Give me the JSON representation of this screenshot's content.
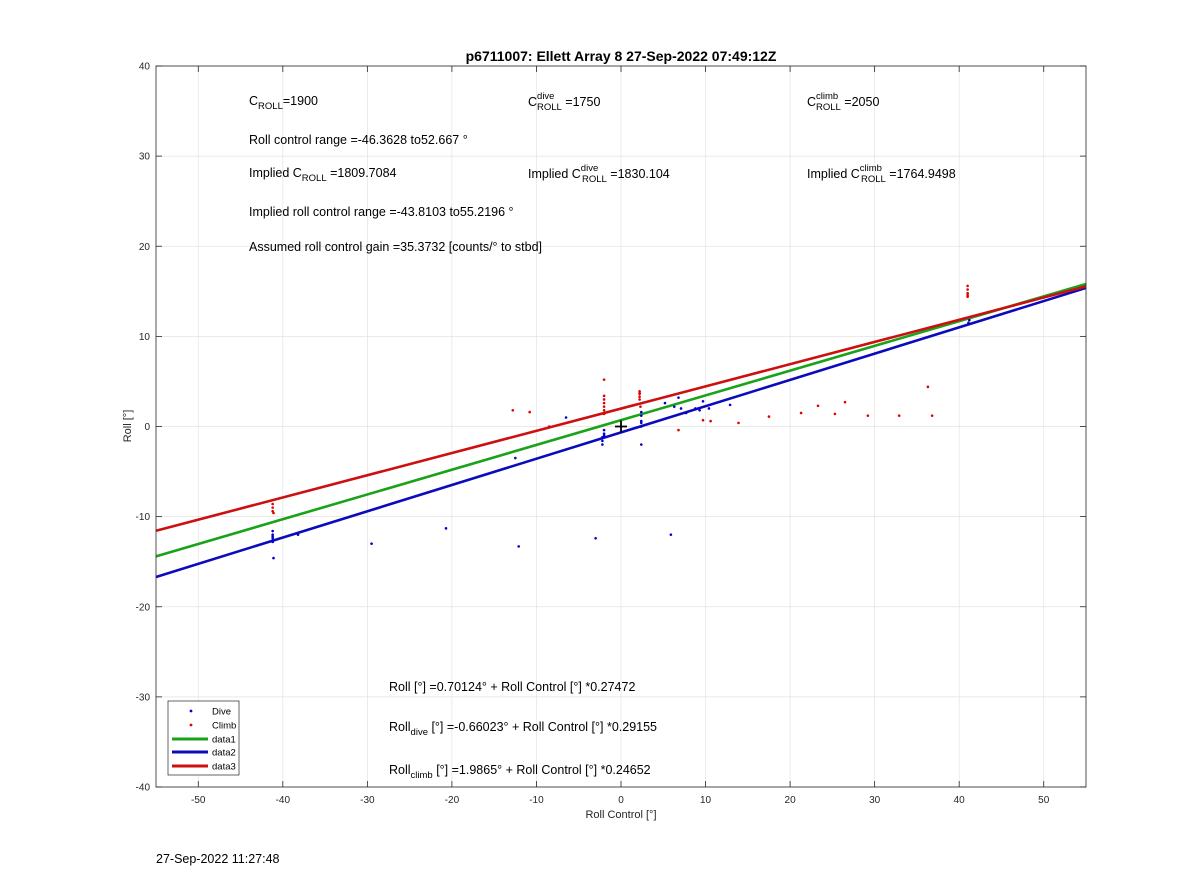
{
  "chart_data": {
    "type": "scatter",
    "title": "p6711007: Ellett Array 8 27-Sep-2022 07:49:12Z",
    "xlabel": "Roll Control [°]",
    "ylabel": "Roll [°]",
    "xlim": [
      -55,
      55
    ],
    "ylim": [
      -40,
      40
    ],
    "xticks": [
      -50,
      -40,
      -30,
      -20,
      -10,
      0,
      10,
      20,
      30,
      40,
      50
    ],
    "yticks": [
      -40,
      -30,
      -20,
      -10,
      0,
      10,
      20,
      30,
      40
    ],
    "grid": true,
    "legend_position": "bottom-left",
    "series": [
      {
        "name": "Dive",
        "kind": "points",
        "color": "#0000cc",
        "points": [
          [
            -41.2,
            -12.0
          ],
          [
            -41.2,
            -11.6
          ],
          [
            -41.2,
            -12.4
          ],
          [
            -41.2,
            -12.8
          ],
          [
            -41.2,
            -12.2
          ],
          [
            -41.1,
            -14.6
          ],
          [
            -38.2,
            -12.0
          ],
          [
            -29.5,
            -13.0
          ],
          [
            -20.7,
            -11.3
          ],
          [
            -12.1,
            -13.3
          ],
          [
            -12.5,
            -3.5
          ],
          [
            -6.5,
            1.0
          ],
          [
            -3.0,
            -12.4
          ],
          [
            -2.2,
            -1.6
          ],
          [
            -2.2,
            -2.0
          ],
          [
            -2.2,
            -1.2
          ],
          [
            -2.0,
            -0.8
          ],
          [
            -2.0,
            -0.4
          ],
          [
            -2.0,
            -1.0
          ],
          [
            2.4,
            -2.0
          ],
          [
            2.4,
            0.0
          ],
          [
            2.4,
            0.6
          ],
          [
            2.4,
            1.2
          ],
          [
            2.4,
            1.6
          ],
          [
            2.4,
            0.4
          ],
          [
            5.2,
            2.6
          ],
          [
            5.9,
            -12.0
          ],
          [
            6.3,
            2.2
          ],
          [
            6.8,
            3.2
          ],
          [
            7.1,
            2.0
          ],
          [
            7.7,
            1.5
          ],
          [
            8.8,
            2.0
          ],
          [
            9.3,
            1.8
          ],
          [
            9.7,
            2.8
          ],
          [
            10.4,
            2.0
          ],
          [
            12.9,
            2.4
          ],
          [
            41.1,
            11.5
          ],
          [
            41.2,
            11.8
          ]
        ]
      },
      {
        "name": "Climb",
        "kind": "points",
        "color": "#e00000",
        "points": [
          [
            -41.2,
            -9.0
          ],
          [
            -41.2,
            -8.6
          ],
          [
            -41.2,
            -9.4
          ],
          [
            -41.1,
            -9.6
          ],
          [
            -12.8,
            1.8
          ],
          [
            -10.8,
            1.6
          ],
          [
            -8.5,
            0.0
          ],
          [
            -2.0,
            5.2
          ],
          [
            -2.0,
            3.4
          ],
          [
            -2.0,
            3.0
          ],
          [
            -2.0,
            2.6
          ],
          [
            -2.0,
            2.2
          ],
          [
            -2.0,
            1.8
          ],
          [
            -2.0,
            1.4
          ],
          [
            2.2,
            3.9
          ],
          [
            2.2,
            3.6
          ],
          [
            2.2,
            3.3
          ],
          [
            2.2,
            3.0
          ],
          [
            2.2,
            3.7
          ],
          [
            2.3,
            2.2
          ],
          [
            6.8,
            -0.4
          ],
          [
            9.7,
            0.7
          ],
          [
            10.6,
            0.6
          ],
          [
            13.9,
            0.4
          ],
          [
            17.5,
            1.1
          ],
          [
            21.3,
            1.5
          ],
          [
            23.3,
            2.3
          ],
          [
            25.3,
            1.4
          ],
          [
            26.5,
            2.7
          ],
          [
            29.2,
            1.2
          ],
          [
            32.9,
            1.2
          ],
          [
            36.3,
            4.4
          ],
          [
            36.8,
            1.2
          ],
          [
            41.0,
            14.4
          ],
          [
            41.0,
            14.8
          ],
          [
            41.0,
            15.2
          ],
          [
            41.0,
            15.6
          ],
          [
            41.0,
            14.6
          ]
        ]
      },
      {
        "name": "data1",
        "kind": "line",
        "color": "#1aa21a",
        "intercept": 0.70124,
        "slope": 0.27472
      },
      {
        "name": "data2",
        "kind": "line",
        "color": "#0b0bbb",
        "intercept": -0.66023,
        "slope": 0.29155
      },
      {
        "name": "data3",
        "kind": "line",
        "color": "#cc1010",
        "intercept": 1.9865,
        "slope": 0.24652
      }
    ],
    "marker": {
      "x": 0,
      "y": 0,
      "symbol": "+"
    }
  },
  "annotations": {
    "c_roll": {
      "label": "C",
      "sub": "ROLL",
      "value": "=1900"
    },
    "c_dive": {
      "label": "C",
      "sup": "dive",
      "sub": "ROLL",
      "value": " =1750"
    },
    "c_climb": {
      "label": "C",
      "sup": "climb",
      "sub": "ROLL",
      "value": " =2050"
    },
    "roll_range": "Roll control range =-46.3628 to52.667 °",
    "implied_c_roll": {
      "prefix": "Implied C",
      "sub": "ROLL",
      "value": " =1809.7084"
    },
    "implied_c_dive": {
      "prefix": "Implied C",
      "sup": "dive",
      "sub": "ROLL",
      "value": " =1830.104"
    },
    "implied_c_climb": {
      "prefix": "Implied C",
      "sup": "climb",
      "sub": "ROLL",
      "value": " =1764.9498"
    },
    "implied_range": "Implied roll control range =-43.8103 to55.2196 °",
    "gain": "Assumed roll control gain =35.3732 [counts/° to stbd]",
    "fit_all": "Roll [°] =0.70124° + Roll Control [°] *0.27472",
    "fit_dive": {
      "prefix": "Roll",
      "sub": "dive",
      "rest": " [°] =-0.66023° + Roll Control [°] *0.29155"
    },
    "fit_climb": {
      "prefix": "Roll",
      "sub": "climb",
      "rest": " [°] =1.9865° + Roll Control [°] *0.24652"
    }
  },
  "timestamp": "27-Sep-2022 11:27:48"
}
